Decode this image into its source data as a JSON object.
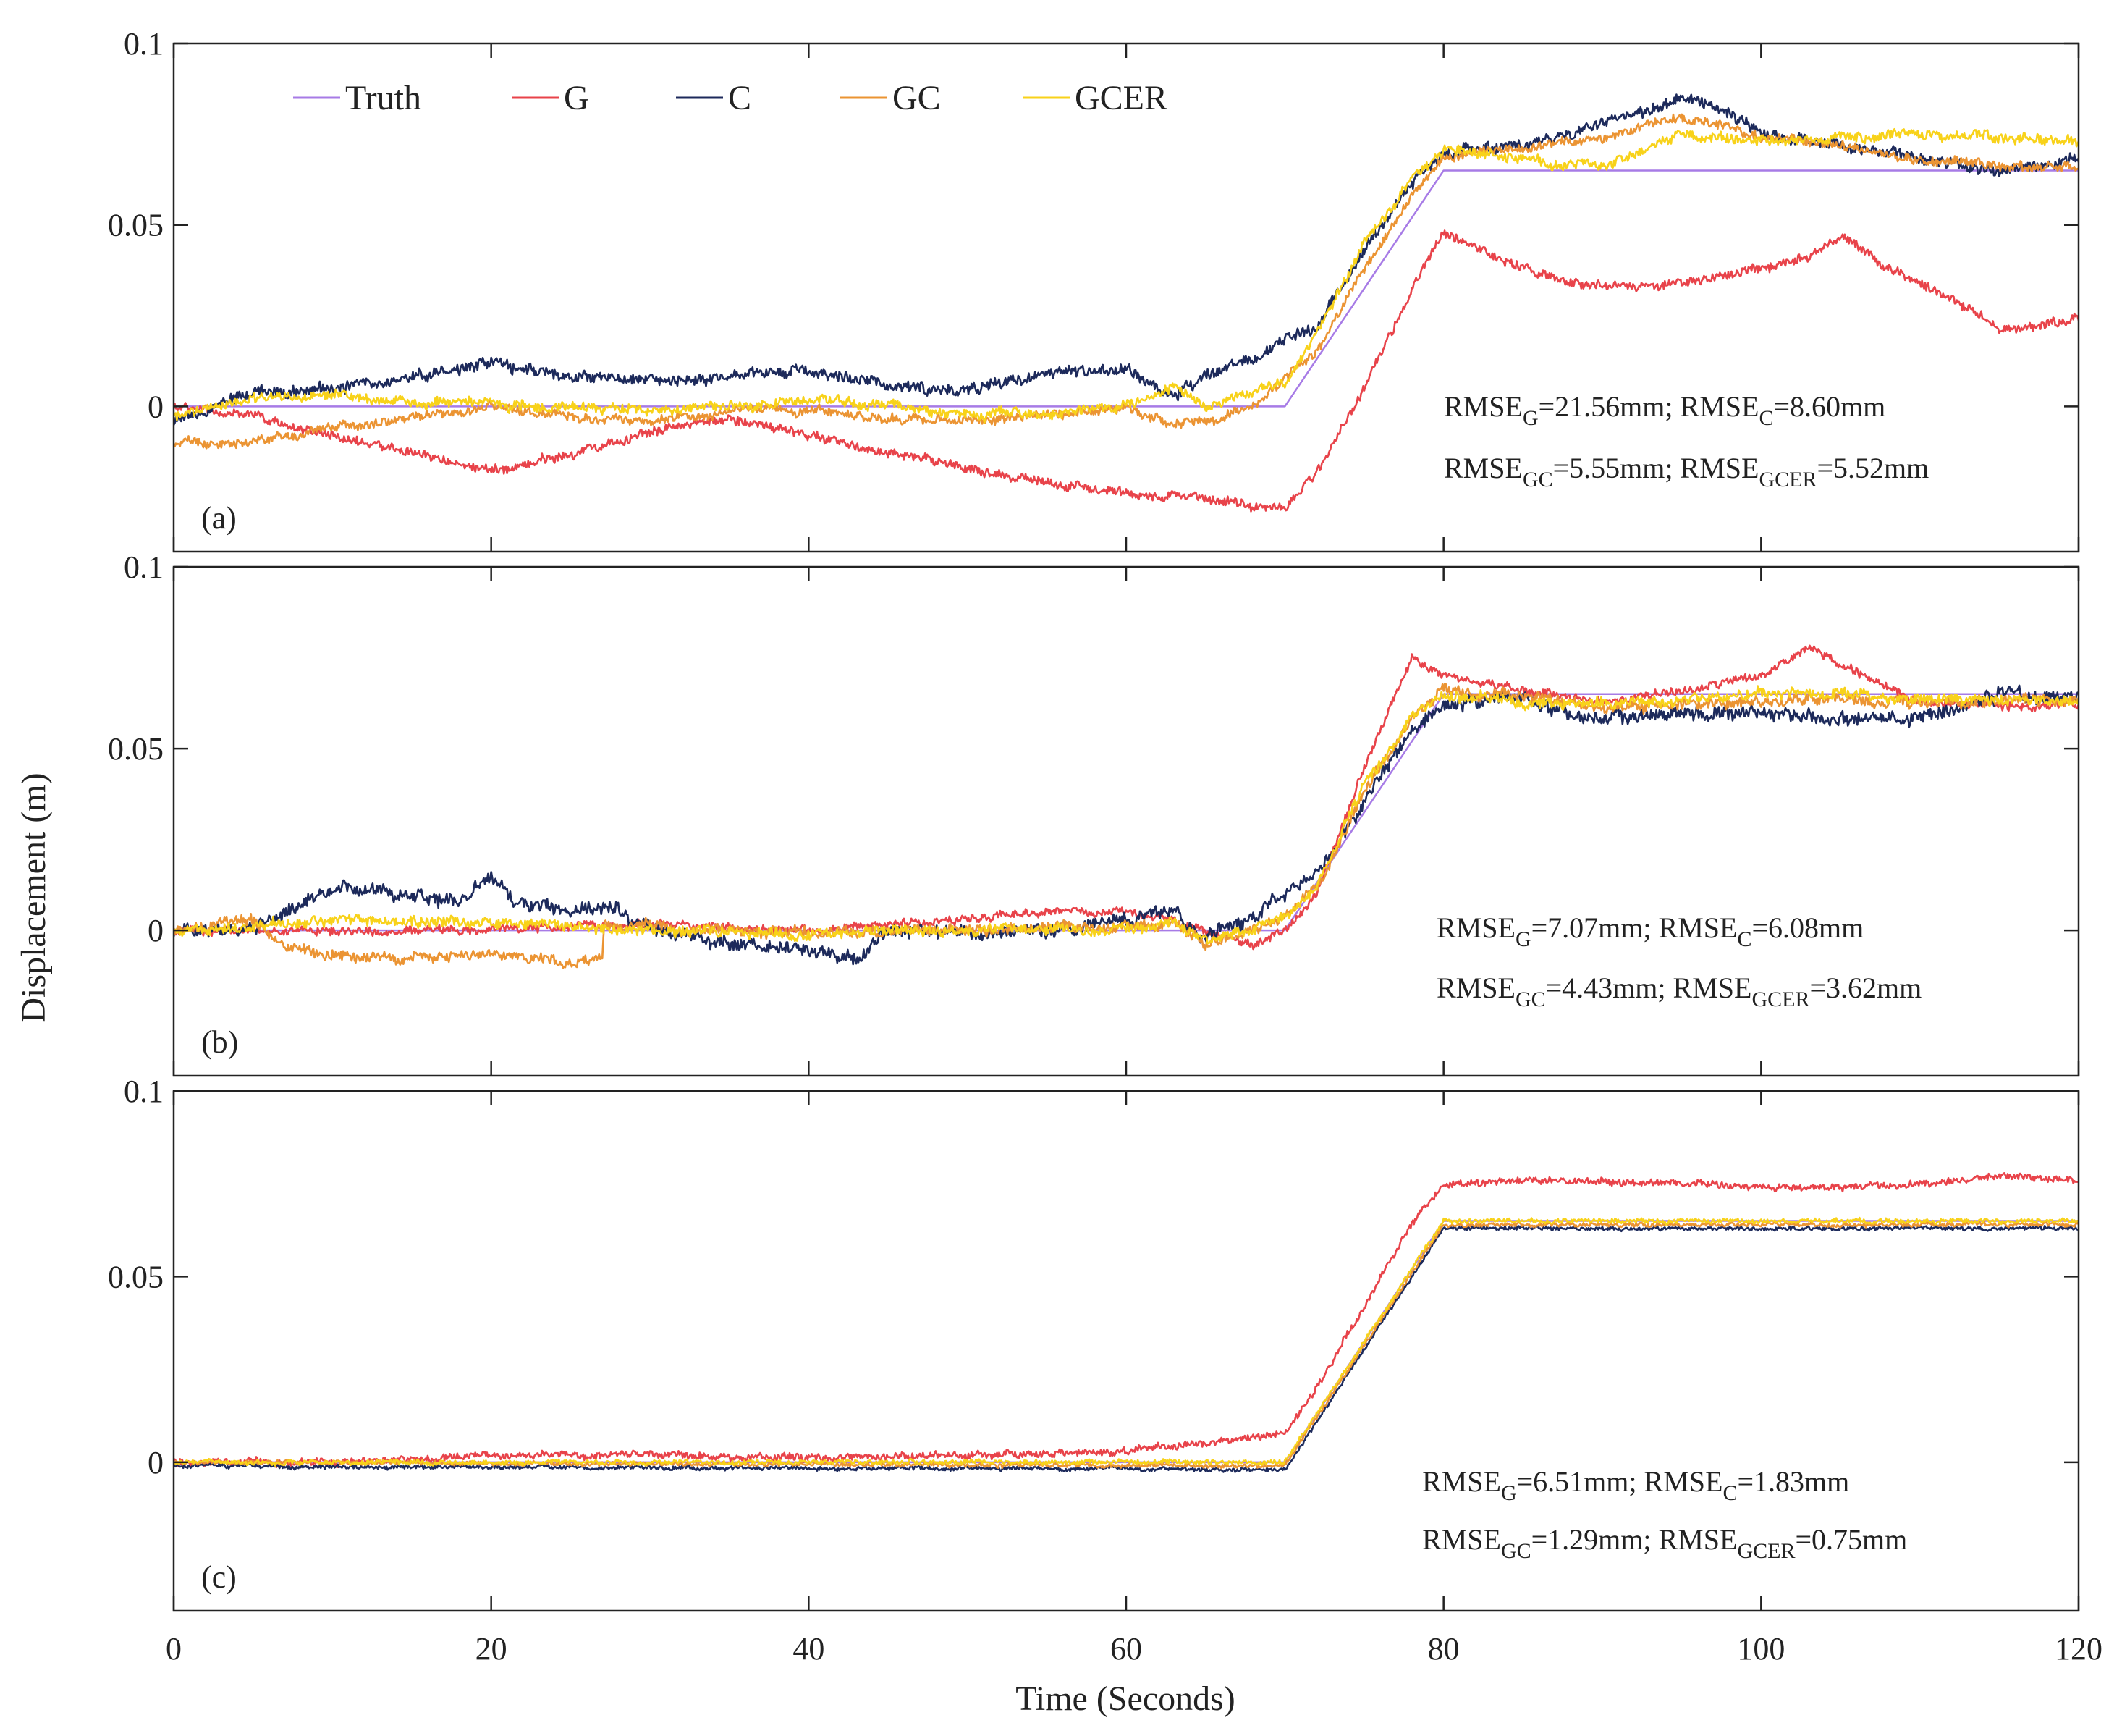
{
  "chart_data": {
    "type": "line",
    "xlabel": "Time (Seconds)",
    "ylabel": "Displacement (m)",
    "xlim": [
      0,
      120
    ],
    "ylim": [
      -0.04,
      0.1
    ],
    "xticks": [
      0,
      20,
      40,
      60,
      80,
      100,
      120
    ],
    "xtick_labels": [
      "0",
      "20",
      "40",
      "60",
      "80",
      "100",
      "120"
    ],
    "yticks": [
      0,
      0.05,
      0.1
    ],
    "ytick_labels": [
      "0",
      "0.05",
      "0.1"
    ],
    "legend": {
      "placement": "top-left",
      "entries": [
        {
          "name": "Truth",
          "color": "#a77be6"
        },
        {
          "name": "G",
          "color": "#e8434a"
        },
        {
          "name": "C",
          "color": "#1d2a5b"
        },
        {
          "name": "GC",
          "color": "#eb9433"
        },
        {
          "name": "GCER",
          "color": "#f8d21a"
        }
      ]
    },
    "panels": [
      {
        "label": "(a)",
        "annotations": [
          {
            "parts": [
              [
                "RMSE",
                ""
              ],
              [
                "G",
                "sub"
              ],
              [
                "=21.56mm; RMSE",
                ""
              ],
              [
                "C",
                "sub"
              ],
              [
                "=8.60mm",
                ""
              ]
            ]
          },
          {
            "parts": [
              [
                "RMSE",
                ""
              ],
              [
                "GC",
                "sub"
              ],
              [
                "=5.55mm; RMSE",
                ""
              ],
              [
                "GCER",
                "sub"
              ],
              [
                "=5.52mm",
                ""
              ]
            ]
          }
        ],
        "series": [
          {
            "name": "Truth",
            "x": [
              0,
              70,
              80,
              120
            ],
            "y": [
              0,
              0,
              0.065,
              0.065
            ]
          },
          {
            "name": "G",
            "noise": 0.0012,
            "x": [
              0,
              5,
              10,
              20,
              25,
              30,
              35,
              40,
              45,
              50,
              55,
              60,
              65,
              68,
              70,
              72,
              75,
              78,
              80,
              83,
              86,
              90,
              95,
              100,
              103,
              105,
              108,
              112,
              115,
              120
            ],
            "y": [
              0,
              -0.003,
              -0.008,
              -0.018,
              -0.013,
              -0.007,
              -0.003,
              -0.008,
              -0.013,
              -0.017,
              -0.021,
              -0.024,
              -0.025,
              -0.028,
              -0.028,
              -0.018,
              0.005,
              0.032,
              0.048,
              0.042,
              0.036,
              0.033,
              0.034,
              0.038,
              0.041,
              0.047,
              0.038,
              0.03,
              0.021,
              0.024
            ]
          },
          {
            "name": "C",
            "noise": 0.0015,
            "x": [
              0,
              5,
              10,
              15,
              20,
              25,
              30,
              35,
              40,
              45,
              50,
              55,
              60,
              63,
              65,
              68,
              70,
              72,
              75,
              78,
              80,
              85,
              90,
              95,
              97,
              100,
              105,
              110,
              115,
              120
            ],
            "y": [
              -0.005,
              0.004,
              0.005,
              0.008,
              0.012,
              0.008,
              0.007,
              0.008,
              0.01,
              0.006,
              0.004,
              0.01,
              0.01,
              0.003,
              0.008,
              0.013,
              0.018,
              0.022,
              0.043,
              0.062,
              0.07,
              0.072,
              0.078,
              0.085,
              0.083,
              0.075,
              0.072,
              0.068,
              0.065,
              0.067
            ]
          },
          {
            "name": "GC",
            "noise": 0.0012,
            "x": [
              0,
              5,
              10,
              15,
              20,
              25,
              30,
              35,
              40,
              45,
              50,
              55,
              60,
              63,
              65,
              68,
              70,
              72,
              75,
              78,
              80,
              85,
              90,
              95,
              100,
              105,
              110,
              115,
              120
            ],
            "y": [
              -0.01,
              -0.01,
              -0.006,
              -0.003,
              0,
              -0.003,
              -0.004,
              -0.001,
              -0.001,
              -0.003,
              -0.004,
              -0.002,
              0,
              -0.005,
              -0.004,
              0,
              0.008,
              0.015,
              0.038,
              0.058,
              0.069,
              0.071,
              0.074,
              0.08,
              0.074,
              0.072,
              0.068,
              0.066,
              0.066
            ]
          },
          {
            "name": "GCER",
            "noise": 0.0013,
            "x": [
              0,
              5,
              10,
              15,
              20,
              25,
              30,
              35,
              40,
              45,
              50,
              55,
              60,
              63,
              65,
              68,
              70,
              72,
              75,
              78,
              80,
              85,
              90,
              95,
              100,
              105,
              110,
              115,
              120
            ],
            "y": [
              -0.003,
              0.002,
              0.003,
              0.001,
              0.001,
              0,
              -0.001,
              0,
              0.002,
              0,
              -0.002,
              -0.002,
              0,
              0.005,
              0,
              0.004,
              0.007,
              0.02,
              0.045,
              0.062,
              0.071,
              0.068,
              0.066,
              0.075,
              0.073,
              0.074,
              0.075,
              0.074,
              0.073
            ]
          }
        ]
      },
      {
        "label": "(b)",
        "annotations": [
          {
            "parts": [
              [
                "RMSE",
                ""
              ],
              [
                "G",
                "sub"
              ],
              [
                "=7.07mm; RMSE",
                ""
              ],
              [
                "C",
                "sub"
              ],
              [
                "=6.08mm",
                ""
              ]
            ]
          },
          {
            "parts": [
              [
                "RMSE",
                ""
              ],
              [
                "GC",
                "sub"
              ],
              [
                "=4.43mm; RMSE",
                ""
              ],
              [
                "GCER",
                "sub"
              ],
              [
                "=3.62mm",
                ""
              ]
            ]
          }
        ],
        "series": [
          {
            "name": "Truth",
            "x": [
              0,
              70,
              80,
              120
            ],
            "y": [
              0,
              0,
              0.065,
              0.065
            ]
          },
          {
            "name": "G",
            "noise": 0.0011,
            "x": [
              0,
              10,
              20,
              30,
              40,
              45,
              50,
              55,
              60,
              63,
              65,
              68,
              70,
              72,
              75,
              78,
              80,
              85,
              90,
              95,
              100,
              103,
              105,
              110,
              115,
              120
            ],
            "y": [
              0,
              0,
              0,
              0.002,
              0,
              0.002,
              0.003,
              0.005,
              0.005,
              0.003,
              0,
              -0.004,
              0,
              0.01,
              0.045,
              0.075,
              0.07,
              0.066,
              0.063,
              0.066,
              0.07,
              0.078,
              0.073,
              0.063,
              0.062,
              0.062
            ]
          },
          {
            "name": "C",
            "noise": 0.0018,
            "x": [
              0,
              5,
              10,
              15,
              18,
              20,
              22,
              25,
              28,
              30,
              35,
              40,
              43,
              45,
              50,
              55,
              60,
              63,
              65,
              68,
              70,
              72,
              75,
              78,
              80,
              85,
              90,
              95,
              100,
              105,
              110,
              115,
              120
            ],
            "y": [
              0,
              0,
              0.012,
              0.01,
              0.008,
              0.015,
              0.007,
              0.006,
              0.006,
              0.001,
              -0.004,
              -0.006,
              -0.007,
              0,
              -0.001,
              0,
              0.003,
              0.006,
              -0.002,
              0.004,
              0.01,
              0.015,
              0.035,
              0.055,
              0.063,
              0.064,
              0.057,
              0.06,
              0.06,
              0.058,
              0.058,
              0.065,
              0.064
            ]
          },
          {
            "name": "GC",
            "noise": 0.0014,
            "x": [
              0,
              5,
              7,
              10,
              15,
              20,
              25,
              27,
              27.1,
              30,
              35,
              40,
              45,
              50,
              55,
              60,
              63,
              65,
              68,
              70,
              72,
              75,
              78,
              80,
              85,
              90,
              95,
              100,
              105,
              110,
              115,
              120
            ],
            "y": [
              0,
              0.003,
              -0.005,
              -0.007,
              -0.008,
              -0.006,
              -0.009,
              -0.007,
              0.002,
              0.001,
              0,
              -0.001,
              0,
              0,
              0.001,
              0.001,
              0.002,
              -0.004,
              0,
              0.004,
              0.012,
              0.038,
              0.058,
              0.066,
              0.064,
              0.061,
              0.062,
              0.063,
              0.064,
              0.062,
              0.063,
              0.063
            ]
          },
          {
            "name": "GCER",
            "noise": 0.0014,
            "x": [
              0,
              10,
              20,
              30,
              40,
              45,
              50,
              55,
              60,
              63,
              65,
              68,
              70,
              72,
              75,
              78,
              80,
              85,
              90,
              95,
              100,
              105,
              110,
              115,
              120
            ],
            "y": [
              0,
              0.003,
              0.002,
              0,
              -0.001,
              0,
              0,
              0,
              0,
              0.002,
              -0.003,
              0,
              0.004,
              0.012,
              0.04,
              0.058,
              0.065,
              0.063,
              0.062,
              0.063,
              0.065,
              0.065,
              0.064,
              0.063,
              0.063
            ]
          }
        ]
      },
      {
        "label": "(c)",
        "annotations": [
          {
            "parts": [
              [
                "RMSE",
                ""
              ],
              [
                "G",
                "sub"
              ],
              [
                "=6.51mm; RMSE",
                ""
              ],
              [
                "C",
                "sub"
              ],
              [
                "=1.83mm",
                ""
              ]
            ]
          },
          {
            "parts": [
              [
                "RMSE",
                ""
              ],
              [
                "GC",
                "sub"
              ],
              [
                "=1.29mm; RMSE",
                ""
              ],
              [
                "GCER",
                "sub"
              ],
              [
                "=0.75mm",
                ""
              ]
            ]
          }
        ],
        "series": [
          {
            "name": "Truth",
            "x": [
              0,
              70,
              80,
              120
            ],
            "y": [
              0,
              0,
              0.065,
              0.065
            ]
          },
          {
            "name": "G",
            "noise": 0.0009,
            "x": [
              0,
              10,
              20,
              30,
              40,
              50,
              60,
              65,
              68,
              70,
              72,
              75,
              78,
              80,
              85,
              90,
              95,
              100,
              105,
              110,
              115,
              120
            ],
            "y": [
              0,
              0,
              0.002,
              0.002,
              0.001,
              0.002,
              0.003,
              0.005,
              0.007,
              0.008,
              0.02,
              0.042,
              0.064,
              0.075,
              0.076,
              0.076,
              0.075,
              0.074,
              0.074,
              0.075,
              0.077,
              0.076
            ]
          },
          {
            "name": "C",
            "noise": 0.0005,
            "x": [
              0,
              70,
              80,
              120
            ],
            "y": [
              -0.001,
              -0.002,
              0.063,
              0.063
            ]
          },
          {
            "name": "GC",
            "noise": 0.0005,
            "x": [
              0,
              70,
              80,
              120
            ],
            "y": [
              0,
              -0.001,
              0.064,
              0.064
            ]
          },
          {
            "name": "GCER",
            "noise": 0.0006,
            "x": [
              0,
              70,
              80,
              120
            ],
            "y": [
              0,
              0,
              0.065,
              0.065
            ]
          }
        ]
      }
    ]
  }
}
